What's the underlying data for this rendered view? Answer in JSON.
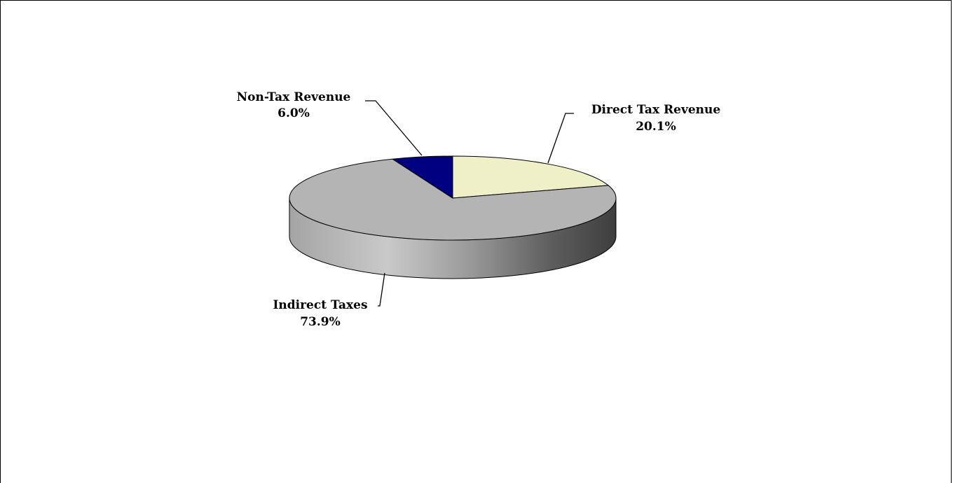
{
  "chart_data": {
    "type": "pie",
    "three_d": true,
    "title": "",
    "slices": [
      {
        "name": "Direct Tax Revenue",
        "value": 20.1,
        "label": "20.1%",
        "color": "#f0f0c8"
      },
      {
        "name": "Indirect Taxes",
        "value": 73.9,
        "label": "73.9%",
        "color": "#b4b4b4"
      },
      {
        "name": "Non-Tax Revenue",
        "value": 6.0,
        "label": "6.0%",
        "color": "#000080"
      }
    ],
    "legend": "none",
    "labels": "outside-with-leader-lines"
  }
}
